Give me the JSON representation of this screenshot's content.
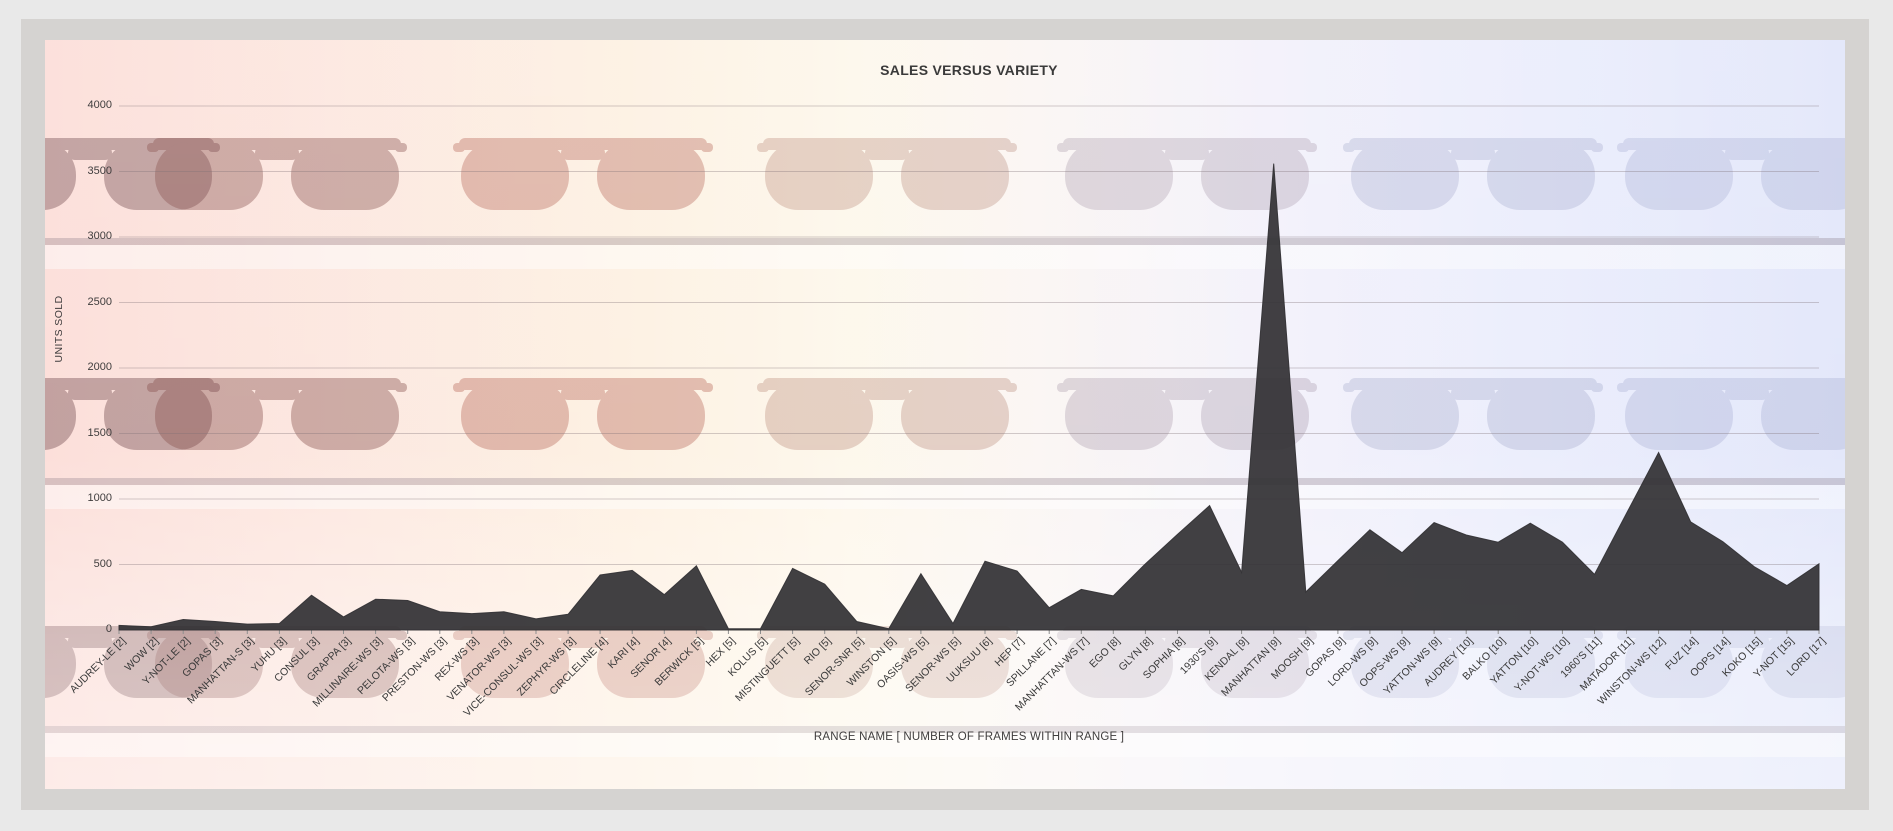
{
  "window": {
    "page_background": "#e9e9e9",
    "frame_background": "#d5d3d1",
    "backdrop_description": "faded photo of sunglasses on glass shelves, pink to lavender tint"
  },
  "chart": {
    "title": "SALES VERSUS VARIETY",
    "y_axis_title": "UNITS SOLD",
    "x_axis_title": "RANGE NAME [ NUMBER OF FRAMES WITHIN RANGE ]"
  },
  "style": {
    "area_fill": "#333135",
    "area_opacity": 0.93,
    "gridline_color": "rgba(125,112,118,0.35)",
    "tick_color": "#8f8f8f",
    "label_color": "#3a3a3a"
  },
  "chart_data": {
    "type": "area",
    "title": "SALES VERSUS VARIETY",
    "xlabel": "RANGE NAME [ NUMBER OF FRAMES WITHIN RANGE ]",
    "ylabel": "UNITS SOLD",
    "ylim": [
      0,
      4000
    ],
    "yticks": [
      0,
      500,
      1000,
      1500,
      2000,
      2500,
      3000,
      3500,
      4000
    ],
    "grid": true,
    "legend": "none",
    "categories": [
      "AUDREY-LE [2]",
      "WOW [2]",
      "Y-NOT-LE [2]",
      "GOPAS [3]",
      "MANHATTAN-S [3]",
      "YUHU [3]",
      "CONSUL [3]",
      "GRAPPA [3]",
      "MILLINAIRE-WS [3]",
      "PELOTA-WS [3]",
      "PRESTON-WS [3]",
      "REX-WS [3]",
      "VENATOR-WS [3]",
      "VICE-CONSUL-WS [3]",
      "ZEPHYR-WS [3]",
      "CIRCLELINE [4]",
      "KARI [4]",
      "SENOR [4]",
      "BERWICK [5]",
      "HEX [5]",
      "KOLUS [5]",
      "MISTINGUETT [5]",
      "RIO [5]",
      "SENOR-SNR [5]",
      "WINSTON [5]",
      "OASIS-WS [5]",
      "SENOR-WS [5]",
      "UUKSUU [6]",
      "HEP [7]",
      "SPILLANE [7]",
      "MANHATTAN-WS [7]",
      "EGO [8]",
      "GLYN [8]",
      "SOPHIA [8]",
      "1930'S [9]",
      "KENDAL [9]",
      "MANHATTAN [9]",
      "MOOSH [9]",
      "GOPAS [9]",
      "LORD-WS [9]",
      "OOPS-WS [9]",
      "YATTON-WS [9]",
      "AUDREY [10]",
      "BALKO [10]",
      "YATTON [10]",
      "Y-NOT-WS [10]",
      "1960'S [11]",
      "MATADOR [11]",
      "WINSTON-WS [12]",
      "FUZ [14]",
      "OOPS [14]",
      "KOKO [15]",
      "Y-NOT [15]",
      "LORD [17]"
    ],
    "values": [
      35,
      25,
      80,
      65,
      45,
      50,
      265,
      100,
      235,
      225,
      140,
      125,
      140,
      85,
      120,
      420,
      455,
      270,
      490,
      10,
      10,
      470,
      350,
      65,
      10,
      430,
      50,
      525,
      450,
      170,
      310,
      260,
      505,
      730,
      950,
      440,
      3560,
      290,
      530,
      765,
      590,
      820,
      725,
      670,
      815,
      670,
      425,
      890,
      1355,
      825,
      675,
      480,
      340,
      505
    ]
  }
}
